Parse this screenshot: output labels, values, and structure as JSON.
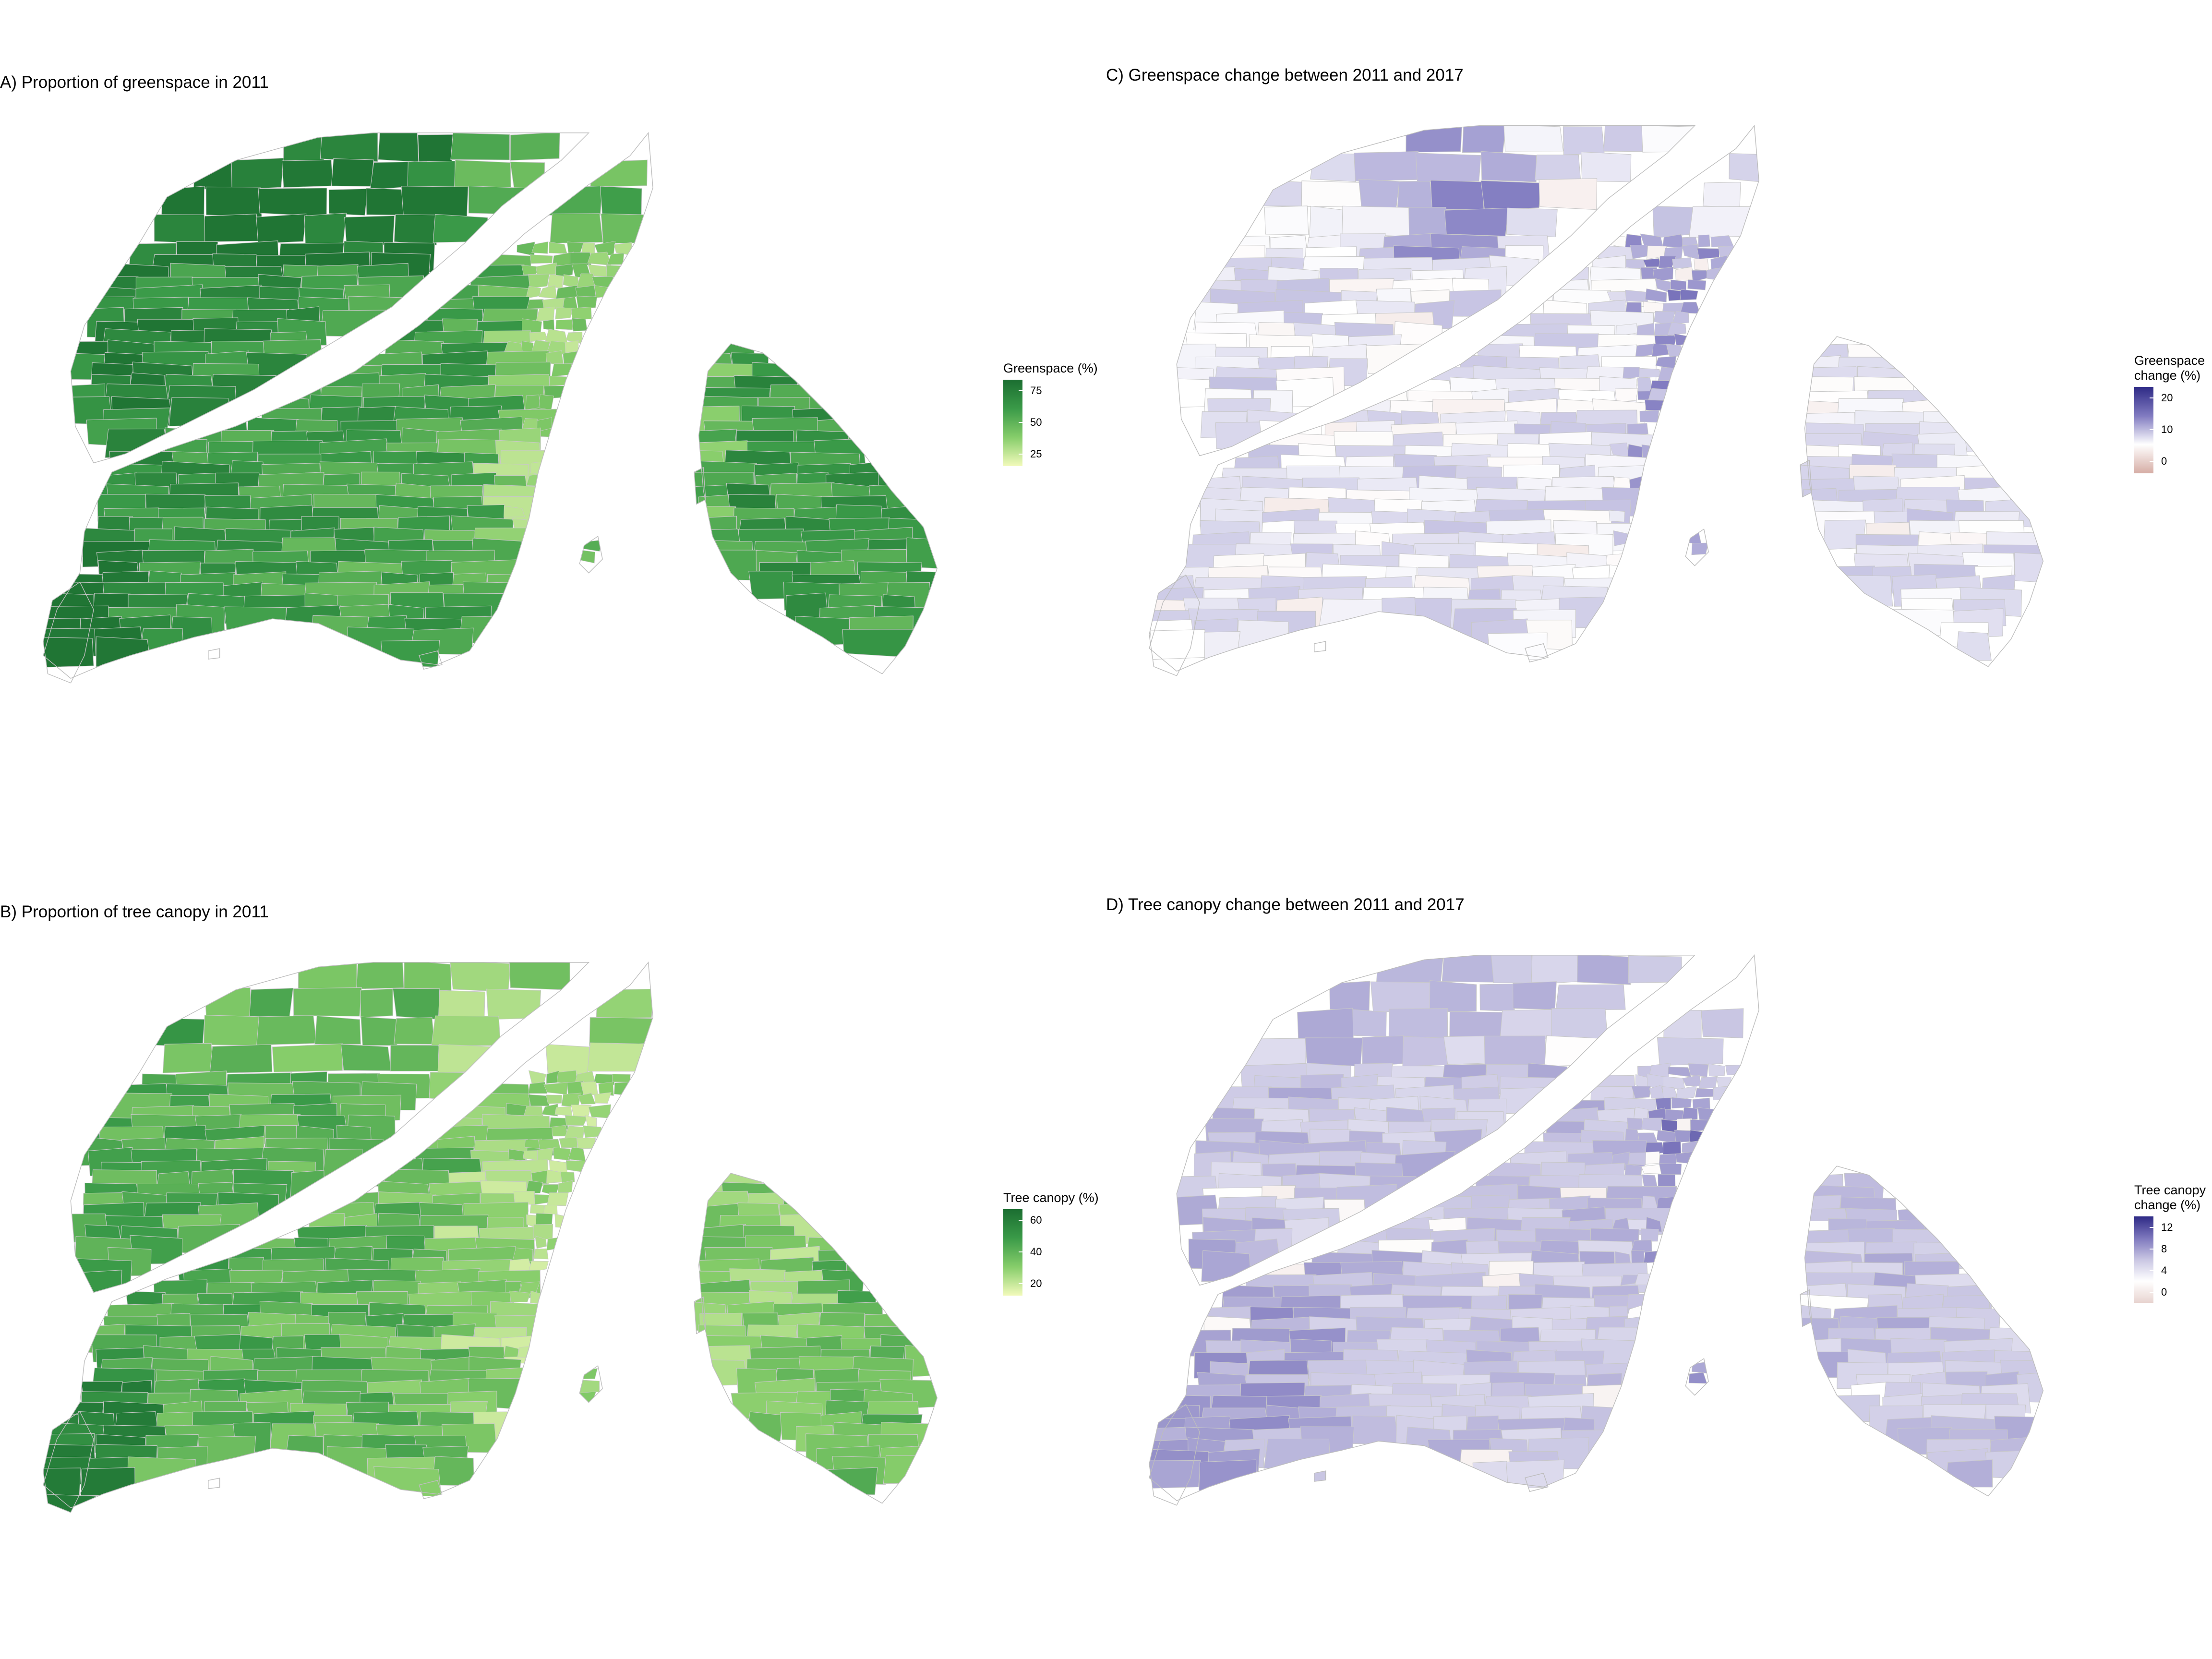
{
  "panels": [
    {
      "id": "A",
      "title": "A) Proportion of greenspace in 2011",
      "scheme": "green",
      "legend": {
        "title_lines": [
          "Greenspace (%)"
        ],
        "ticks": [
          "75",
          "50",
          "25"
        ],
        "colors": [
          "#1b6e31",
          "#3a9a48",
          "#86cd6a",
          "#f2fabb"
        ]
      }
    },
    {
      "id": "C",
      "title": "C) Greenspace change between 2011 and 2017",
      "scheme": "purple-gs",
      "legend": {
        "title_lines": [
          "Greenspace",
          "change (%)"
        ],
        "ticks": [
          "20",
          "10",
          "0"
        ],
        "colors": [
          "#2e2a86",
          "#807ac0",
          "#ffffff",
          "#d6ada5"
        ]
      }
    },
    {
      "id": "B",
      "title": "B) Proportion of tree canopy in 2011",
      "scheme": "green-light",
      "legend": {
        "title_lines": [
          "Tree canopy (%)"
        ],
        "ticks": [
          "60",
          "40",
          "20"
        ],
        "colors": [
          "#1b6e31",
          "#3a9a48",
          "#86cd6a",
          "#f2fabb"
        ]
      }
    },
    {
      "id": "D",
      "title": "D) Tree canopy change between 2011 and 2017",
      "scheme": "purple-tc",
      "legend": {
        "title_lines": [
          "Tree canopy",
          "change (%)"
        ],
        "ticks": [
          "12",
          "8",
          "4",
          "0"
        ],
        "colors": [
          "#2e2a86",
          "#7d77bd",
          "#c9c6e3",
          "#ffffff",
          "#e8d4d0"
        ]
      }
    }
  ]
}
